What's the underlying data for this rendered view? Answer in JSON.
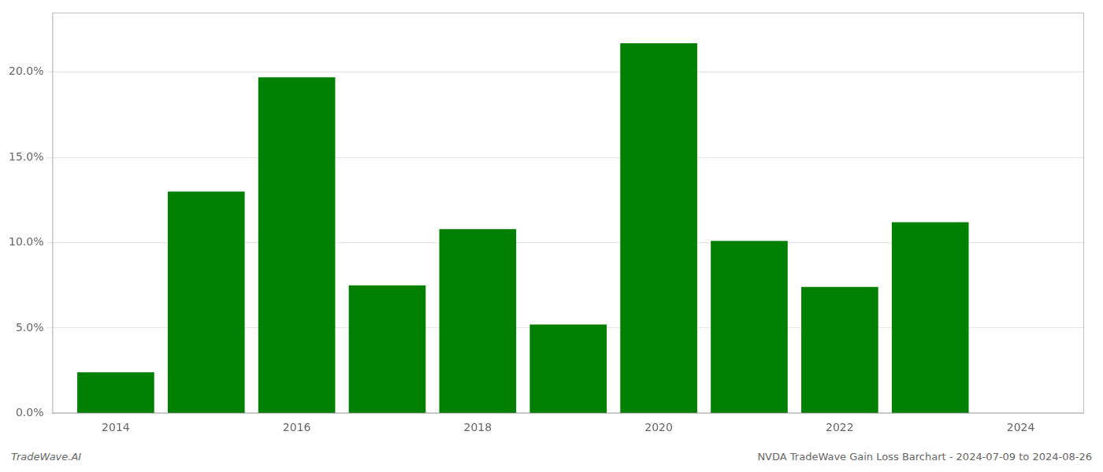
{
  "chart_data": {
    "type": "bar",
    "x": [
      2014,
      2015,
      2016,
      2017,
      2018,
      2019,
      2020,
      2021,
      2022,
      2023
    ],
    "values": [
      0.024,
      0.13,
      0.197,
      0.075,
      0.108,
      0.052,
      0.217,
      0.101,
      0.074,
      0.112
    ],
    "color": "#008000",
    "xlim": [
      2013.3,
      2024.7
    ],
    "xticks": [
      2014,
      2016,
      2018,
      2020,
      2022,
      2024
    ],
    "ylim": [
      0,
      0.235
    ],
    "yticks": [
      {
        "value": 0.0,
        "label": "0.0%"
      },
      {
        "value": 0.05,
        "label": "5.0%"
      },
      {
        "value": 0.1,
        "label": "10.0%"
      },
      {
        "value": 0.15,
        "label": "15.0%"
      },
      {
        "value": 0.2,
        "label": "20.0%"
      }
    ],
    "grid": "y",
    "annotations": [
      "TradeWave.AI",
      "NVDA TradeWave Gain Loss Barchart - 2024-07-09 to 2024-08-26"
    ]
  }
}
